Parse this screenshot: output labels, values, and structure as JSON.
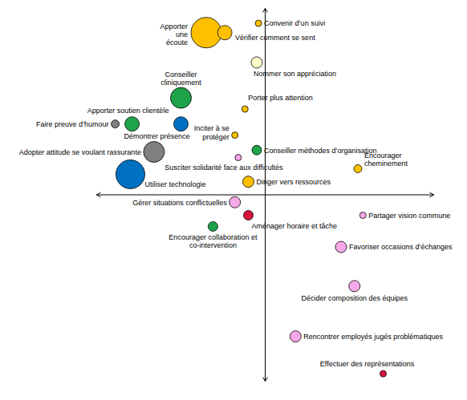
{
  "chart_data": {
    "type": "scatter",
    "xlim": [
      -100,
      100
    ],
    "ylim": [
      -100,
      100
    ],
    "tick_labels": false,
    "labels": [
      "Apporter\nune\nécoute",
      "Vérifier comment se sent",
      "Convenir d’un suivi",
      "Nommer son appréciation",
      "Conseiller\ncliniquement",
      "Porter plus attention",
      "Apporter soutien clientèle",
      "Faire preuve d’humour",
      "Démontrer présence",
      "Inciter à se\nprotéger",
      "Conseiller méthodes d’organisation",
      "Adopter attitude se voulant rassurante",
      "Susciter solidarité face aux difficultés",
      "Encourager\ncheminement",
      "Utiliser technologie",
      "Diriger vers ressources",
      "Gérer situations conflictuelles",
      "Aménager horaire et tâche",
      "Partager vision commune",
      "Encourager collaboration et\nco-intervention",
      "Favoriser occasions d’échanges",
      "Décider composition des équipes",
      "Rencontrer employés jugés problématiques",
      "Effectuer des représentations"
    ],
    "x": [
      -35,
      -24,
      -4,
      -5,
      -50,
      -12,
      -79,
      -89,
      -50,
      -18,
      -5,
      -66,
      -16,
      55,
      -80,
      -10,
      -18,
      -10,
      58,
      -31,
      45,
      53,
      18,
      70
    ],
    "values": [
      87,
      87,
      92,
      71,
      52,
      46,
      38,
      38,
      38,
      32,
      24,
      23,
      20,
      14,
      11,
      7,
      -4,
      -11,
      -11,
      -17,
      -28,
      -49,
      -76,
      -96
    ],
    "sizes": [
      19,
      9,
      4,
      7,
      13,
      4,
      9,
      5,
      9,
      4,
      6,
      13,
      4,
      5,
      18,
      7,
      7,
      6,
      4,
      6,
      7,
      7,
      7,
      4
    ],
    "colors": [
      "#ffc000",
      "#ffc000",
      "#ffc000",
      "#ffffcc",
      "#1ea34a",
      "#ffc000",
      "#1ea34a",
      "#7f7f7f",
      "#0070c0",
      "#ffc000",
      "#1ea34a",
      "#7f7f7f",
      "#f7a8e8",
      "#ffc000",
      "#0070c0",
      "#ffc000",
      "#f7a8e8",
      "#d6143c",
      "#f7a8e8",
      "#1ea34a",
      "#f7a8e8",
      "#f7a8e8",
      "#f7a8e8",
      "#d6143c"
    ]
  }
}
